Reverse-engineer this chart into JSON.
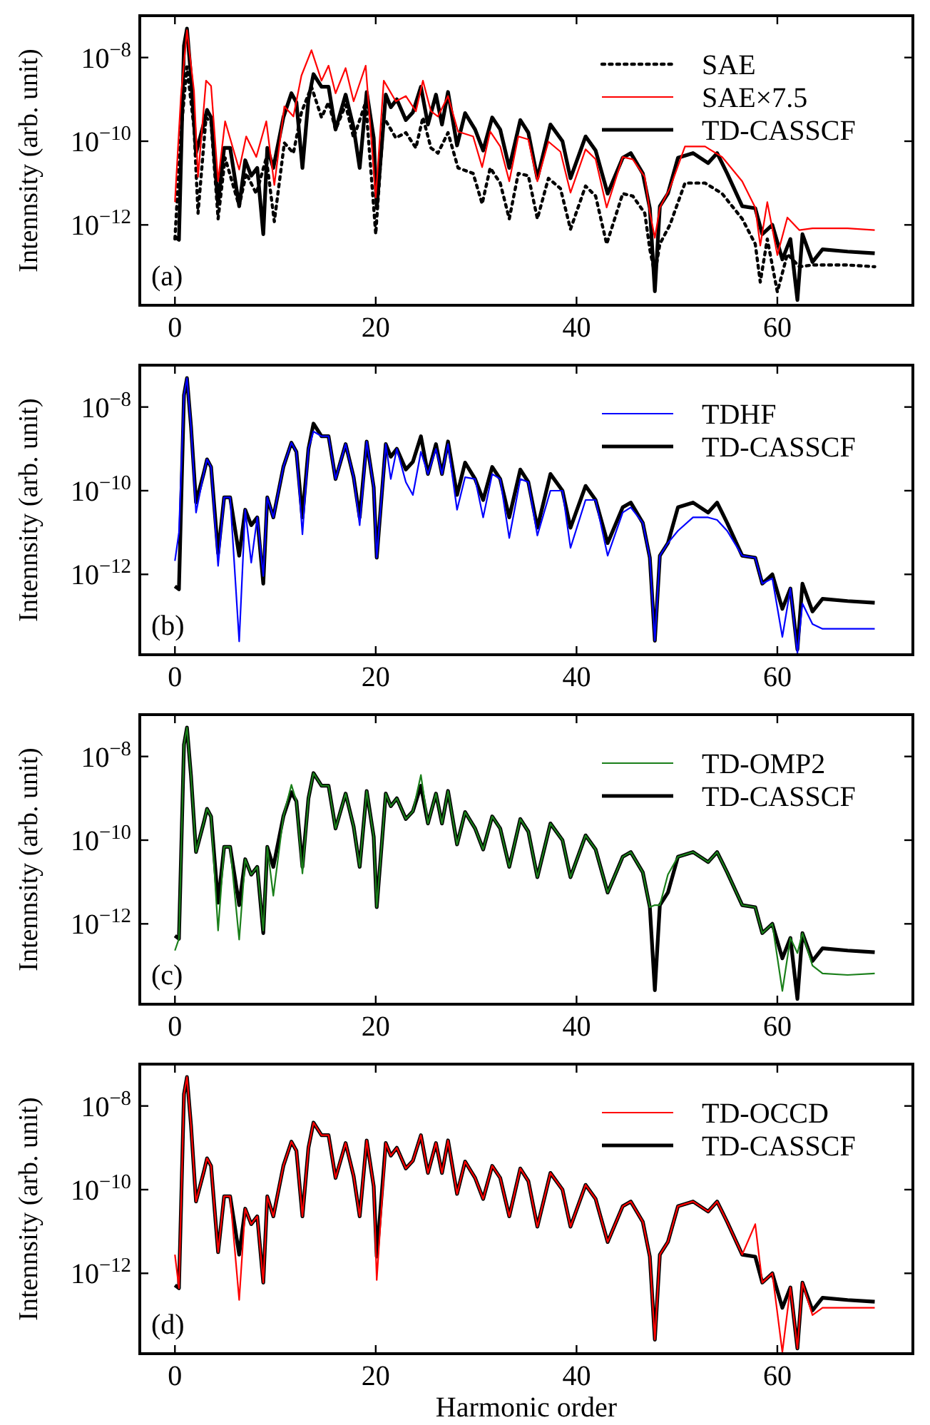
{
  "chart_data": [
    {
      "type": "line",
      "xlim": [
        -3.5,
        73.5
      ],
      "ylim": [
        1.2e-14,
        1e-07
      ],
      "log": "y",
      "xticks": [
        0,
        20,
        40,
        60
      ],
      "yticks": [
        {
          "value": 1e-08,
          "label": "10$^{−8}$"
        },
        {
          "value": 1e-10,
          "label": "10$^{−10}$"
        },
        {
          "value": 1e-12,
          "label": "10$^{−12}$"
        }
      ],
      "ylabel": "Intennsity (arb. unit)",
      "legend": "top right",
      "annotations": [
        "(a)"
      ],
      "series": [
        {
          "name": "SAE",
          "color": "#000000",
          "line_style": "dotted",
          "x": [
            0,
            0.6,
            1.2,
            1.9,
            2.3,
            3.1,
            3.6,
            4.3,
            5.0,
            6.4,
            7.1,
            8.1,
            9.1,
            9.9,
            10.9,
            11.8,
            12.6,
            13.6,
            14.6,
            15.3,
            16.0,
            17.0,
            17.8,
            19.0,
            20.0,
            20.8,
            22.0,
            23.0,
            24.0,
            24.7,
            25.5,
            26.2,
            27.2,
            28.2,
            29.7,
            30.6,
            31.4,
            32.4,
            33.3,
            34.2,
            35.2,
            36.1,
            37.2,
            38.4,
            39.4,
            40.9,
            41.9,
            43.0,
            44.6,
            45.6,
            46.8,
            47.3,
            47.8,
            48.3,
            49.3,
            50.8,
            52.8,
            54.5,
            56.5,
            57.8,
            58.3,
            59.0,
            60.0,
            61.0,
            62.2,
            63.5,
            67.0,
            69.7
          ],
          "values": [
            4.6e-13,
            1.6e-10,
            6e-09,
            2.1e-10,
            1.9e-12,
            3.7e-10,
            2.8e-10,
            1.4e-12,
            4e-11,
            2.8e-12,
            1.7e-11,
            5.6e-12,
            4e-11,
            1.2e-12,
            9.1e-11,
            5.2e-11,
            4.9e-10,
            2e-09,
            3.7e-10,
            8.5e-10,
            1.9e-10,
            7.4e-10,
            1.2e-10,
            8.5e-10,
            6e-13,
            3.7e-10,
            1.2e-10,
            1.6e-10,
            6.9e-11,
            3.7e-10,
            6.9e-11,
            5.2e-11,
            1.6e-10,
            2.3e-11,
            1.7e-11,
            3.2e-12,
            2.3e-11,
            1e-11,
            1.4e-12,
            1.7e-11,
            1.5e-11,
            1.4e-12,
            1.3e-11,
            7.4e-12,
            7.9e-13,
            8.5e-12,
            4.9e-12,
            3.5e-13,
            5.6e-12,
            4.9e-12,
            1.9e-12,
            2.6e-13,
            6.5e-14,
            3.5e-13,
            1e-12,
            1e-11,
            1e-11,
            5.6e-12,
            1.4e-12,
            3.5e-13,
            4.3e-14,
            4.6e-13,
            2.5e-14,
            2e-13,
            1e-13,
            1.1e-13,
            1.1e-13,
            1e-13
          ]
        },
        {
          "name": "SAE×7.5",
          "color": "#ff0000",
          "line_style": "solid",
          "x": [
            0,
            0.6,
            1.2,
            1.9,
            2.3,
            3.1,
            3.6,
            4.3,
            5.0,
            6.4,
            7.1,
            8.1,
            9.1,
            9.9,
            10.9,
            11.8,
            12.6,
            13.6,
            14.6,
            15.3,
            16.0,
            17.0,
            17.8,
            19.0,
            20.0,
            20.8,
            22.0,
            23.0,
            24.0,
            24.7,
            25.5,
            26.2,
            27.2,
            28.2,
            29.7,
            30.6,
            31.4,
            32.4,
            33.3,
            34.2,
            35.2,
            36.1,
            37.2,
            38.4,
            39.4,
            40.9,
            41.9,
            43.0,
            44.6,
            45.6,
            46.8,
            47.3,
            47.8,
            48.3,
            49.3,
            50.8,
            52.8,
            54.5,
            56.5,
            57.8,
            58.3,
            59.0,
            60.0,
            61.0,
            62.2,
            63.5,
            67.0,
            69.7
          ],
          "values": [
            3.5e-12,
            1.2e-09,
            4.5e-08,
            1.6e-09,
            1.4e-11,
            2.8e-09,
            2.1e-09,
            1.1e-11,
            3e-10,
            2.1e-11,
            1.3e-10,
            4.2e-11,
            3e-10,
            9e-12,
            6.8e-10,
            3.9e-10,
            3.7e-09,
            1.5e-08,
            2.8e-09,
            6.4e-09,
            1.4e-09,
            5.6e-09,
            9e-10,
            6.4e-09,
            4.5e-12,
            2.8e-09,
            9e-10,
            1.2e-09,
            5.2e-10,
            2.8e-09,
            5.2e-10,
            3.9e-10,
            1.2e-09,
            1.7e-10,
            1.3e-10,
            2.4e-11,
            1.7e-10,
            7.5e-11,
            1.1e-11,
            1.3e-10,
            1.1e-10,
            1.1e-11,
            9.8e-11,
            5.6e-11,
            5.9e-12,
            6.4e-11,
            3.7e-11,
            2.6e-12,
            4.2e-11,
            3.7e-11,
            1.4e-11,
            2e-12,
            4.9e-13,
            2.6e-12,
            7.5e-12,
            7.5e-11,
            7.5e-11,
            4.2e-11,
            1.1e-11,
            2.6e-12,
            3.2e-13,
            3.5e-12,
            1.9e-13,
            1.5e-12,
            7.5e-13,
            8.3e-13,
            8.3e-13,
            7.5e-13
          ]
        },
        {
          "name": "TD-CASSCF",
          "color": "#000000",
          "line_style": "solid",
          "x": [
            0,
            0.4,
            0.9,
            1.2,
            1.6,
            2.1,
            2.9,
            3.2,
            3.6,
            4.3,
            4.9,
            5.5,
            6.4,
            7.0,
            7.6,
            8.2,
            8.8,
            9.2,
            9.8,
            10.8,
            11.6,
            12.1,
            12.7,
            13.3,
            13.8,
            14.6,
            15.3,
            16.0,
            17.0,
            17.8,
            18.4,
            19.1,
            19.8,
            20.1,
            21.0,
            21.5,
            22.1,
            23.0,
            23.7,
            24.5,
            25.2,
            26.0,
            26.6,
            27.2,
            28.1,
            28.9,
            29.9,
            30.7,
            31.6,
            32.4,
            33.3,
            34.4,
            35.2,
            36.1,
            37.4,
            38.6,
            39.4,
            40.9,
            41.9,
            43.1,
            44.6,
            45.4,
            46.6,
            47.3,
            47.8,
            48.3,
            49.1,
            50.1,
            51.6,
            53.1,
            54.0,
            55.0,
            56.5,
            57.8,
            58.5,
            59.5,
            60.5,
            61.3,
            62.0,
            62.5,
            63.5,
            64.5,
            67.0,
            69.7
          ],
          "values": [
            5.2e-13,
            4.4e-13,
            1.9e-08,
            4.9e-08,
            3.5e-09,
            5.2e-11,
            2.8e-10,
            5.6e-10,
            3.7e-10,
            3.2e-12,
            6.9e-11,
            6.9e-11,
            2.8e-12,
            3.5e-11,
            1.5e-11,
            2.3e-11,
            6e-13,
            6.9e-11,
            2.3e-11,
            3.7e-10,
            1.4e-09,
            8.5e-10,
            2.3e-11,
            1e-09,
            4e-09,
            2e-09,
            2e-09,
            1.9e-10,
            1.3e-09,
            2.1e-10,
            2.3e-11,
            1.5e-09,
            1.2e-10,
            2.5e-12,
            1.3e-09,
            6.5e-10,
            1e-09,
            3.2e-10,
            4.9e-10,
            2e-09,
            2.5e-10,
            1.3e-09,
            2.5e-10,
            1.5e-09,
            7.9e-11,
            4.7e-10,
            1.9e-10,
            6e-11,
            3.7e-10,
            1.9e-10,
            2.3e-11,
            3.2e-10,
            1.6e-10,
            1.3e-11,
            2.5e-10,
            1e-10,
            1.3e-11,
            1.3e-10,
            6e-11,
            5.6e-12,
            4e-11,
            5.2e-11,
            1.7e-11,
            2.5e-12,
            2.6e-14,
            2.8e-12,
            5.6e-12,
            4e-11,
            5.2e-11,
            3e-11,
            5.2e-11,
            1.7e-11,
            2.8e-12,
            2.5e-12,
            6e-13,
            1e-12,
            1.5e-13,
            4.6e-13,
            1.6e-14,
            6e-13,
            1.3e-13,
            2.6e-13,
            2.3e-13,
            2.1e-13
          ]
        }
      ]
    },
    {
      "type": "line",
      "xlim": [
        -3.5,
        73.5
      ],
      "ylim": [
        1.2e-14,
        1e-07
      ],
      "log": "y",
      "xticks": [
        0,
        20,
        40,
        60
      ],
      "yticks": [
        {
          "value": 1e-08,
          "label": "10$^{−8}$"
        },
        {
          "value": 1e-10,
          "label": "10$^{−10}$"
        },
        {
          "value": 1e-12,
          "label": "10$^{−12}$"
        }
      ],
      "ylabel": "Intennsity (arb. unit)",
      "legend": "top right",
      "annotations": [
        "(b)"
      ],
      "series": [
        {
          "name": "TDHF",
          "color": "#0000ff",
          "line_style": "solid",
          "x": [
            0,
            0.4,
            0.9,
            1.2,
            1.6,
            2.1,
            2.9,
            3.2,
            3.6,
            4.3,
            4.9,
            5.5,
            6.4,
            7.0,
            7.6,
            8.2,
            8.8,
            9.2,
            9.8,
            10.8,
            11.6,
            12.1,
            12.7,
            13.3,
            13.8,
            14.6,
            15.3,
            16.0,
            17.0,
            17.8,
            18.4,
            19.1,
            19.8,
            20.1,
            21.0,
            21.5,
            22.1,
            23.0,
            23.7,
            24.5,
            25.2,
            26.0,
            26.6,
            27.2,
            28.1,
            28.9,
            29.9,
            30.7,
            31.6,
            32.4,
            33.3,
            34.4,
            35.2,
            36.1,
            37.4,
            38.6,
            39.4,
            40.9,
            41.9,
            43.1,
            44.6,
            45.4,
            46.6,
            47.3,
            47.8,
            48.3,
            49.1,
            50.1,
            51.6,
            53.1,
            54.0,
            55.0,
            56.5,
            57.8,
            58.5,
            59.5,
            60.5,
            61.3,
            62.0,
            62.5,
            63.5,
            64.5,
            67.0,
            69.7
          ],
          "values": [
            2.1e-12,
            1e-11,
            1.9e-08,
            4.9e-08,
            3.5e-09,
            3e-11,
            2.8e-10,
            5.6e-10,
            3.7e-10,
            1.6e-12,
            6.9e-11,
            6.9e-11,
            2.5e-14,
            3.5e-11,
            1.9e-12,
            2.3e-11,
            9.1e-13,
            6.9e-11,
            2.3e-11,
            3.7e-10,
            1.4e-09,
            8.5e-10,
            9.1e-12,
            1e-09,
            2.6e-09,
            2e-09,
            2e-09,
            1.9e-10,
            1.3e-09,
            2.1e-10,
            1.5e-11,
            1.5e-09,
            1.2e-10,
            2.5e-12,
            1.3e-09,
            1.9e-10,
            1e-09,
            1.6e-10,
            7.9e-11,
            8.5e-10,
            2.5e-10,
            1e-09,
            2.5e-10,
            1.3e-09,
            3.5e-11,
            2.1e-10,
            1.9e-10,
            2.3e-11,
            2.5e-10,
            1.9e-10,
            7.4e-12,
            1.9e-10,
            1.6e-10,
            8.5e-12,
            1e-10,
            1e-10,
            4.3e-12,
            6e-11,
            6e-11,
            2.8e-12,
            3e-11,
            4e-11,
            1.7e-11,
            2.5e-12,
            2.6e-14,
            2.8e-12,
            5.6e-12,
            1.1e-11,
            2.3e-11,
            2.3e-11,
            2e-11,
            1.1e-11,
            2.8e-12,
            2.5e-12,
            6e-13,
            8e-13,
            3.2e-14,
            4.6e-13,
            1.3e-14,
            2e-13,
            6.5e-14,
            5e-14,
            5e-14,
            5e-14
          ]
        },
        {
          "name": "TD-CASSCF",
          "color": "#000000",
          "line_style": "solid",
          "x": [
            0,
            0.4,
            0.9,
            1.2,
            1.6,
            2.1,
            2.9,
            3.2,
            3.6,
            4.3,
            4.9,
            5.5,
            6.4,
            7.0,
            7.6,
            8.2,
            8.8,
            9.2,
            9.8,
            10.8,
            11.6,
            12.1,
            12.7,
            13.3,
            13.8,
            14.6,
            15.3,
            16.0,
            17.0,
            17.8,
            18.4,
            19.1,
            19.8,
            20.1,
            21.0,
            21.5,
            22.1,
            23.0,
            23.7,
            24.5,
            25.2,
            26.0,
            26.6,
            27.2,
            28.1,
            28.9,
            29.9,
            30.7,
            31.6,
            32.4,
            33.3,
            34.4,
            35.2,
            36.1,
            37.4,
            38.6,
            39.4,
            40.9,
            41.9,
            43.1,
            44.6,
            45.4,
            46.6,
            47.3,
            47.8,
            48.3,
            49.1,
            50.1,
            51.6,
            53.1,
            54.0,
            55.0,
            56.5,
            57.8,
            58.5,
            59.5,
            60.5,
            61.3,
            62.0,
            62.5,
            63.5,
            64.5,
            67.0,
            69.7
          ],
          "values": [
            5.2e-13,
            4.4e-13,
            1.9e-08,
            4.9e-08,
            3.5e-09,
            5.2e-11,
            2.8e-10,
            5.6e-10,
            3.7e-10,
            3.2e-12,
            6.9e-11,
            6.9e-11,
            2.8e-12,
            3.5e-11,
            1.5e-11,
            2.3e-11,
            6e-13,
            6.9e-11,
            2.3e-11,
            3.7e-10,
            1.4e-09,
            8.5e-10,
            2.3e-11,
            1e-09,
            4e-09,
            2e-09,
            2e-09,
            1.9e-10,
            1.3e-09,
            2.1e-10,
            2.3e-11,
            1.5e-09,
            1.2e-10,
            2.5e-12,
            1.3e-09,
            6.5e-10,
            1e-09,
            3.2e-10,
            4.9e-10,
            2e-09,
            2.5e-10,
            1.3e-09,
            2.5e-10,
            1.5e-09,
            7.9e-11,
            4.7e-10,
            1.9e-10,
            6e-11,
            3.7e-10,
            1.9e-10,
            2.3e-11,
            3.2e-10,
            1.6e-10,
            1.3e-11,
            2.5e-10,
            1e-10,
            1.3e-11,
            1.3e-10,
            6e-11,
            5.6e-12,
            4e-11,
            5.2e-11,
            1.7e-11,
            2.5e-12,
            2.6e-14,
            2.8e-12,
            5.6e-12,
            4e-11,
            5.2e-11,
            3e-11,
            5.2e-11,
            1.7e-11,
            2.8e-12,
            2.5e-12,
            6e-13,
            1e-12,
            1.5e-13,
            4.6e-13,
            1.6e-14,
            6e-13,
            1.3e-13,
            2.6e-13,
            2.3e-13,
            2.1e-13
          ]
        }
      ]
    },
    {
      "type": "line",
      "xlim": [
        -3.5,
        73.5
      ],
      "ylim": [
        1.2e-14,
        1e-07
      ],
      "log": "y",
      "xticks": [
        0,
        20,
        40,
        60
      ],
      "yticks": [
        {
          "value": 1e-08,
          "label": "10$^{−8}$"
        },
        {
          "value": 1e-10,
          "label": "10$^{−10}$"
        },
        {
          "value": 1e-12,
          "label": "10$^{−12}$"
        }
      ],
      "ylabel": "Intennsity (arb. unit)",
      "legend": "top right",
      "annotations": [
        "(c)"
      ],
      "series": [
        {
          "name": "TD-OMP2",
          "color": "#1a7f1a",
          "line_style": "solid",
          "x": [
            0,
            0.4,
            0.9,
            1.2,
            1.6,
            2.1,
            2.9,
            3.2,
            3.6,
            4.3,
            4.9,
            5.5,
            6.4,
            7.0,
            7.6,
            8.2,
            8.8,
            9.2,
            9.8,
            10.8,
            11.6,
            12.1,
            12.7,
            13.3,
            13.8,
            14.6,
            15.3,
            16.0,
            17.0,
            17.8,
            18.4,
            19.1,
            19.8,
            20.1,
            21.0,
            21.5,
            22.1,
            23.0,
            23.7,
            24.5,
            25.2,
            26.0,
            26.6,
            27.2,
            28.1,
            28.9,
            29.9,
            30.7,
            31.6,
            32.4,
            33.3,
            34.4,
            35.2,
            36.1,
            37.4,
            38.6,
            39.4,
            40.9,
            41.9,
            43.1,
            44.6,
            45.4,
            46.6,
            47.3,
            47.8,
            48.3,
            49.1,
            50.1,
            51.6,
            53.1,
            54.0,
            55.0,
            56.5,
            57.8,
            58.5,
            59.5,
            60.5,
            61.3,
            62.0,
            62.5,
            63.5,
            64.5,
            67.0,
            69.7
          ],
          "values": [
            2.3e-13,
            4.4e-13,
            1.9e-08,
            4.9e-08,
            3.5e-09,
            5.2e-11,
            2.8e-10,
            5.6e-10,
            3.7e-10,
            6.9e-13,
            6.9e-11,
            6.9e-11,
            4.2e-13,
            3.5e-11,
            1.5e-11,
            2.3e-11,
            6.9e-13,
            6.9e-11,
            4.7e-12,
            3.7e-10,
            2.1e-09,
            8.5e-10,
            1.6e-11,
            1e-09,
            4e-09,
            2e-09,
            2e-09,
            1.9e-10,
            1.3e-09,
            2.1e-10,
            2.3e-11,
            1.5e-09,
            1.2e-10,
            2.5e-12,
            1.3e-09,
            6.5e-10,
            1e-09,
            3.2e-10,
            4.9e-10,
            3.6e-09,
            2.5e-10,
            1.3e-09,
            2.5e-10,
            1.5e-09,
            7.9e-11,
            4.7e-10,
            1.9e-10,
            6e-11,
            3.7e-10,
            1.9e-10,
            2.3e-11,
            3.2e-10,
            1.6e-10,
            1.3e-11,
            2.5e-10,
            1e-10,
            1.3e-11,
            1.3e-10,
            6e-11,
            5.6e-12,
            4e-11,
            5.2e-11,
            1.7e-11,
            2.5e-12,
            2.8e-12,
            2.8e-12,
            1.5e-11,
            4e-11,
            5.2e-11,
            3e-11,
            5.2e-11,
            1.7e-11,
            2.8e-12,
            2.5e-12,
            6e-13,
            1e-12,
            2.5e-14,
            4.6e-13,
            2e-13,
            6e-13,
            1e-13,
            6.5e-14,
            6e-14,
            6.5e-14
          ]
        },
        {
          "name": "TD-CASSCF",
          "color": "#000000",
          "line_style": "solid",
          "x": [
            0,
            0.4,
            0.9,
            1.2,
            1.6,
            2.1,
            2.9,
            3.2,
            3.6,
            4.3,
            4.9,
            5.5,
            6.4,
            7.0,
            7.6,
            8.2,
            8.8,
            9.2,
            9.8,
            10.8,
            11.6,
            12.1,
            12.7,
            13.3,
            13.8,
            14.6,
            15.3,
            16.0,
            17.0,
            17.8,
            18.4,
            19.1,
            19.8,
            20.1,
            21.0,
            21.5,
            22.1,
            23.0,
            23.7,
            24.5,
            25.2,
            26.0,
            26.6,
            27.2,
            28.1,
            28.9,
            29.9,
            30.7,
            31.6,
            32.4,
            33.3,
            34.4,
            35.2,
            36.1,
            37.4,
            38.6,
            39.4,
            40.9,
            41.9,
            43.1,
            44.6,
            45.4,
            46.6,
            47.3,
            47.8,
            48.3,
            49.1,
            50.1,
            51.6,
            53.1,
            54.0,
            55.0,
            56.5,
            57.8,
            58.5,
            59.5,
            60.5,
            61.3,
            62.0,
            62.5,
            63.5,
            64.5,
            67.0,
            69.7
          ],
          "values": [
            5.2e-13,
            4.4e-13,
            1.9e-08,
            4.9e-08,
            3.5e-09,
            5.2e-11,
            2.8e-10,
            5.6e-10,
            3.7e-10,
            3.2e-12,
            6.9e-11,
            6.9e-11,
            2.8e-12,
            3.5e-11,
            1.5e-11,
            2.3e-11,
            6e-13,
            6.9e-11,
            2.3e-11,
            3.7e-10,
            1.4e-09,
            8.5e-10,
            2.3e-11,
            1e-09,
            4e-09,
            2e-09,
            2e-09,
            1.9e-10,
            1.3e-09,
            2.1e-10,
            2.3e-11,
            1.5e-09,
            1.2e-10,
            2.5e-12,
            1.3e-09,
            6.5e-10,
            1e-09,
            3.2e-10,
            4.9e-10,
            2e-09,
            2.5e-10,
            1.3e-09,
            2.5e-10,
            1.5e-09,
            7.9e-11,
            4.7e-10,
            1.9e-10,
            6e-11,
            3.7e-10,
            1.9e-10,
            2.3e-11,
            3.2e-10,
            1.6e-10,
            1.3e-11,
            2.5e-10,
            1e-10,
            1.3e-11,
            1.3e-10,
            6e-11,
            5.6e-12,
            4e-11,
            5.2e-11,
            1.7e-11,
            2.5e-12,
            2.6e-14,
            2.8e-12,
            5.6e-12,
            4e-11,
            5.2e-11,
            3e-11,
            5.2e-11,
            1.7e-11,
            2.8e-12,
            2.5e-12,
            6e-13,
            1e-12,
            1.5e-13,
            4.6e-13,
            1.6e-14,
            6e-13,
            1.3e-13,
            2.6e-13,
            2.3e-13,
            2.1e-13
          ]
        }
      ]
    },
    {
      "type": "line",
      "xlim": [
        -3.5,
        73.5
      ],
      "ylim": [
        1.2e-14,
        1e-07
      ],
      "log": "y",
      "xticks": [
        0,
        20,
        40,
        60
      ],
      "yticks": [
        {
          "value": 1e-08,
          "label": "10$^{−8}$"
        },
        {
          "value": 1e-10,
          "label": "10$^{−10}$"
        },
        {
          "value": 1e-12,
          "label": "10$^{−12}$"
        }
      ],
      "xlabel": "Harmonic order",
      "ylabel": "Intennsity (arb. unit)",
      "legend": "top right",
      "annotations": [
        "(d)"
      ],
      "series": [
        {
          "name": "TD-OCCD",
          "color": "#ff0000",
          "line_style": "solid",
          "x": [
            0,
            0.4,
            0.9,
            1.2,
            1.6,
            2.1,
            2.9,
            3.2,
            3.6,
            4.3,
            4.9,
            5.5,
            6.4,
            7.0,
            7.6,
            8.2,
            8.8,
            9.2,
            9.8,
            10.8,
            11.6,
            12.1,
            12.7,
            13.3,
            13.8,
            14.6,
            15.3,
            16.0,
            17.0,
            17.8,
            18.4,
            19.1,
            19.8,
            20.1,
            21.0,
            21.5,
            22.1,
            23.0,
            23.7,
            24.5,
            25.2,
            26.0,
            26.6,
            27.2,
            28.1,
            28.9,
            29.9,
            30.7,
            31.6,
            32.4,
            33.3,
            34.4,
            35.2,
            36.1,
            37.4,
            38.6,
            39.4,
            40.9,
            41.9,
            43.1,
            44.6,
            45.4,
            46.6,
            47.3,
            47.8,
            48.3,
            49.1,
            50.1,
            51.6,
            53.1,
            54.0,
            55.0,
            56.5,
            57.8,
            58.5,
            59.5,
            60.5,
            61.3,
            62.0,
            62.5,
            63.5,
            64.5,
            67.0,
            69.7
          ],
          "values": [
            2.8e-12,
            4.4e-13,
            1.9e-08,
            4.9e-08,
            3.5e-09,
            5.2e-11,
            2.8e-10,
            5.6e-10,
            3.7e-10,
            3.2e-12,
            6.9e-11,
            6.9e-11,
            2.3e-13,
            3.5e-11,
            1.5e-11,
            2.3e-11,
            6e-13,
            6.9e-11,
            2.3e-11,
            3.7e-10,
            1.4e-09,
            8.5e-10,
            2.3e-11,
            1e-09,
            4e-09,
            2e-09,
            2e-09,
            1.9e-10,
            1.3e-09,
            2.1e-10,
            2.3e-11,
            1.5e-09,
            1.2e-10,
            6.9e-13,
            1.3e-09,
            6.5e-10,
            1e-09,
            3.2e-10,
            4.9e-10,
            2e-09,
            2.5e-10,
            1.3e-09,
            2.5e-10,
            1.5e-09,
            7.9e-11,
            4.7e-10,
            1.9e-10,
            6e-11,
            3.7e-10,
            1.9e-10,
            2.3e-11,
            3.2e-10,
            1.6e-10,
            1.3e-11,
            2.5e-10,
            1e-10,
            1.3e-11,
            1.3e-10,
            6e-11,
            5.6e-12,
            4e-11,
            5.2e-11,
            1.7e-11,
            2.5e-12,
            2.6e-14,
            2.8e-12,
            5.6e-12,
            4e-11,
            5.2e-11,
            3e-11,
            5.2e-11,
            1.7e-11,
            2.8e-12,
            1.5e-11,
            6e-13,
            1e-12,
            1.3e-14,
            4.6e-13,
            1.6e-14,
            6e-13,
            1e-13,
            1.5e-13,
            1.5e-13,
            1.5e-13
          ]
        },
        {
          "name": "TD-CASSCF",
          "color": "#000000",
          "line_style": "solid",
          "x": [
            0,
            0.4,
            0.9,
            1.2,
            1.6,
            2.1,
            2.9,
            3.2,
            3.6,
            4.3,
            4.9,
            5.5,
            6.4,
            7.0,
            7.6,
            8.2,
            8.8,
            9.2,
            9.8,
            10.8,
            11.6,
            12.1,
            12.7,
            13.3,
            13.8,
            14.6,
            15.3,
            16.0,
            17.0,
            17.8,
            18.4,
            19.1,
            19.8,
            20.1,
            21.0,
            21.5,
            22.1,
            23.0,
            23.7,
            24.5,
            25.2,
            26.0,
            26.6,
            27.2,
            28.1,
            28.9,
            29.9,
            30.7,
            31.6,
            32.4,
            33.3,
            34.4,
            35.2,
            36.1,
            37.4,
            38.6,
            39.4,
            40.9,
            41.9,
            43.1,
            44.6,
            45.4,
            46.6,
            47.3,
            47.8,
            48.3,
            49.1,
            50.1,
            51.6,
            53.1,
            54.0,
            55.0,
            56.5,
            57.8,
            58.5,
            59.5,
            60.5,
            61.3,
            62.0,
            62.5,
            63.5,
            64.5,
            67.0,
            69.7
          ],
          "values": [
            5.2e-13,
            4.4e-13,
            1.9e-08,
            4.9e-08,
            3.5e-09,
            5.2e-11,
            2.8e-10,
            5.6e-10,
            3.7e-10,
            3.2e-12,
            6.9e-11,
            6.9e-11,
            2.8e-12,
            3.5e-11,
            1.5e-11,
            2.3e-11,
            6e-13,
            6.9e-11,
            2.3e-11,
            3.7e-10,
            1.4e-09,
            8.5e-10,
            2.3e-11,
            1e-09,
            4e-09,
            2e-09,
            2e-09,
            1.9e-10,
            1.3e-09,
            2.1e-10,
            2.3e-11,
            1.5e-09,
            1.2e-10,
            2.5e-12,
            1.3e-09,
            6.5e-10,
            1e-09,
            3.2e-10,
            4.9e-10,
            2e-09,
            2.5e-10,
            1.3e-09,
            2.5e-10,
            1.5e-09,
            7.9e-11,
            4.7e-10,
            1.9e-10,
            6e-11,
            3.7e-10,
            1.9e-10,
            2.3e-11,
            3.2e-10,
            1.6e-10,
            1.3e-11,
            2.5e-10,
            1e-10,
            1.3e-11,
            1.3e-10,
            6e-11,
            5.6e-12,
            4e-11,
            5.2e-11,
            1.7e-11,
            2.5e-12,
            2.6e-14,
            2.8e-12,
            5.6e-12,
            4e-11,
            5.2e-11,
            3e-11,
            5.2e-11,
            1.7e-11,
            2.8e-12,
            2.5e-12,
            6e-13,
            1e-12,
            1.5e-13,
            4.6e-13,
            1.6e-14,
            6e-13,
            1.3e-13,
            2.6e-13,
            2.3e-13,
            2.1e-13
          ]
        }
      ]
    }
  ]
}
